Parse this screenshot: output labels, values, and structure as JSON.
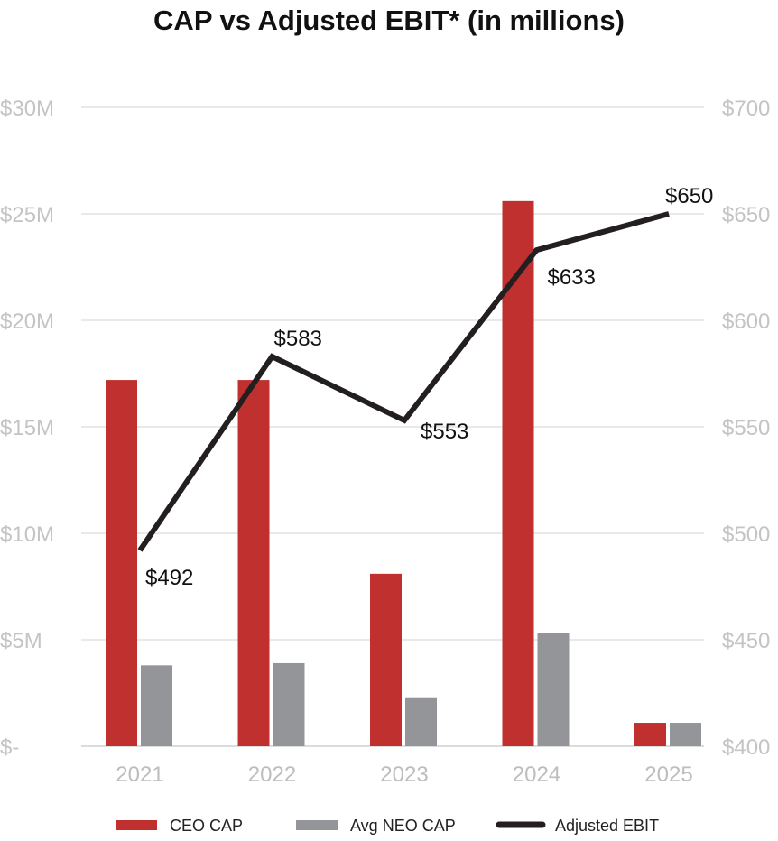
{
  "chart_data": {
    "type": "bar",
    "title": "CAP vs Adjusted EBIT* (in millions)",
    "categories": [
      "2021",
      "2022",
      "2023",
      "2024",
      "2025"
    ],
    "left_axis": {
      "ylim": [
        0,
        30
      ],
      "ticks": [
        0,
        5,
        10,
        15,
        20,
        25,
        30
      ],
      "tick_labels": [
        "$-",
        "$5M",
        "$10M",
        "$15M",
        "$20M",
        "$25M",
        "$30M"
      ]
    },
    "right_axis": {
      "ylim": [
        400,
        700
      ],
      "ticks": [
        400,
        450,
        500,
        550,
        600,
        650,
        700
      ],
      "tick_labels": [
        "$400",
        "$450",
        "$500",
        "$550",
        "$600",
        "$650",
        "$700"
      ]
    },
    "grid": true,
    "legend_position": "bottom",
    "series": [
      {
        "name": "CEO CAP",
        "type": "bar",
        "axis": "left",
        "color": "#c0302e",
        "values": [
          17.2,
          17.2,
          8.1,
          25.6,
          1.1
        ]
      },
      {
        "name": "Avg NEO CAP",
        "type": "bar",
        "axis": "left",
        "color": "#939598",
        "values": [
          3.8,
          3.9,
          2.3,
          5.3,
          1.1
        ]
      },
      {
        "name": "Adjusted EBIT",
        "type": "line",
        "axis": "right",
        "color": "#231f20",
        "values": [
          492,
          583,
          553,
          633,
          650
        ],
        "data_labels": [
          "$492",
          "$583",
          "$553",
          "$633",
          "$650"
        ]
      }
    ]
  }
}
